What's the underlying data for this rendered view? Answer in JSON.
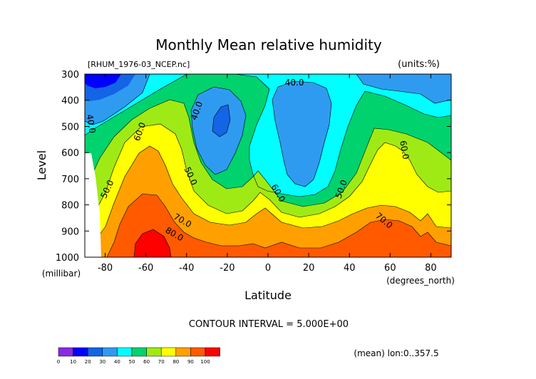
{
  "chart_data": {
    "type": "contour",
    "title": "Monthly Mean relative humidity",
    "file_label": "[RHUM_1976-03_NCEP.nc]",
    "units_label": "(units:%)",
    "xlabel": "Latitude",
    "x_units": "(degrees_north)",
    "ylabel": "Level",
    "y_units": "(millibar)",
    "xlim": [
      -90,
      90
    ],
    "ylim": [
      1000,
      300
    ],
    "x_ticks": [
      -80,
      -60,
      -40,
      -20,
      0,
      20,
      40,
      60,
      80
    ],
    "y_ticks": [
      300,
      400,
      500,
      600,
      700,
      800,
      900,
      1000
    ],
    "x_tick_labels": [
      "-80",
      "-60",
      "-40",
      "-20",
      "0",
      "20",
      "40",
      "60",
      "80"
    ],
    "y_tick_labels": [
      "300",
      "400",
      "500",
      "600",
      "700",
      "800",
      "900",
      "1000"
    ],
    "contour_interval_text": "CONTOUR INTERVAL = 5.000E+00",
    "footer_note": "(mean) lon:0..357.5",
    "contour_labels": [
      {
        "text": "40.0",
        "x": 13,
        "y": 333,
        "angle": 0
      },
      {
        "text": "40.0",
        "x": -35,
        "y": 440,
        "angle": -70
      },
      {
        "text": "40.0",
        "x": -87,
        "y": 490,
        "angle": 80
      },
      {
        "text": "60.0",
        "x": -63,
        "y": 520,
        "angle": -70
      },
      {
        "text": "60.0",
        "x": 67,
        "y": 590,
        "angle": 80
      },
      {
        "text": "50.0",
        "x": -38,
        "y": 690,
        "angle": 65
      },
      {
        "text": "50.0",
        "x": -79,
        "y": 740,
        "angle": -65
      },
      {
        "text": "50.0",
        "x": 36,
        "y": 740,
        "angle": -70
      },
      {
        "text": "60.0",
        "x": 5,
        "y": 755,
        "angle": 60
      },
      {
        "text": "70.0",
        "x": -42,
        "y": 860,
        "angle": 30
      },
      {
        "text": "70.0",
        "x": 57,
        "y": 860,
        "angle": 40
      },
      {
        "text": "80.0",
        "x": -46,
        "y": 912,
        "angle": 30
      }
    ],
    "colorbar": {
      "levels": [
        0,
        10,
        20,
        30,
        40,
        50,
        60,
        70,
        80,
        90,
        100
      ],
      "colors": [
        "#8a2be2",
        "#0000ff",
        "#1464e6",
        "#2f9bf0",
        "#00ffff",
        "#00d26e",
        "#9fea14",
        "#ffff00",
        "#ffa000",
        "#ff5a00",
        "#ff0000"
      ]
    },
    "grid": false,
    "legend": "bottom-left color bar"
  }
}
